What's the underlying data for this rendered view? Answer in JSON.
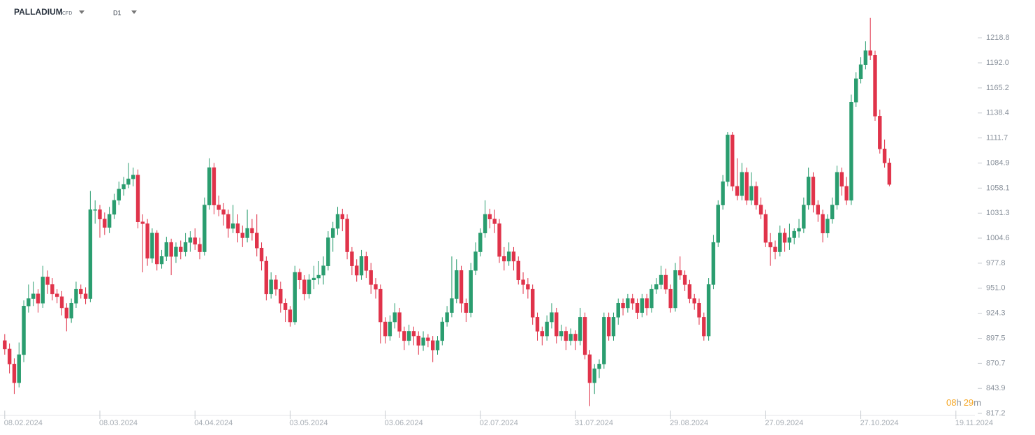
{
  "header": {
    "instrument": "PALLADIUM",
    "instrument_type": "CFD",
    "timeframe": "D1"
  },
  "countdown": [
    "08",
    "h",
    "29",
    "m"
  ],
  "chart_data": {
    "type": "candlestick",
    "up_color": "#2a9d6f",
    "down_color": "#e0334a",
    "ylim": [
      815,
      1245
    ],
    "yticks": [
      1218.8,
      {
        "value": 1192,
        "label": "1192.0"
      },
      1165.2,
      1138.4,
      1111.7,
      1084.9,
      1058.1,
      1031.3,
      1004.6,
      977.8,
      {
        "value": 951,
        "label": "951.0"
      },
      924.3,
      897.5,
      870.7,
      843.9,
      817.2
    ],
    "xlim": [
      -1,
      204
    ],
    "xticks": [
      {
        "value": 0,
        "label": "08.02.2024"
      },
      {
        "value": 20,
        "label": "08.03.2024"
      },
      {
        "value": 40,
        "label": "04.04.2024"
      },
      {
        "value": 60,
        "label": "03.05.2024"
      },
      {
        "value": 80,
        "label": "03.06.2024"
      },
      {
        "value": 100,
        "label": "02.07.2024"
      },
      {
        "value": 120,
        "label": "31.07.2024"
      },
      {
        "value": 140,
        "label": "29.08.2024"
      },
      {
        "value": 160,
        "label": "27.09.2024"
      },
      {
        "value": 180,
        "label": "27.10.2024"
      },
      {
        "value": 200,
        "label": "19.11.2024"
      }
    ],
    "candles": [
      [
        895,
        902,
        880,
        886
      ],
      [
        886,
        892,
        860,
        870
      ],
      [
        870,
        876,
        838,
        850
      ],
      [
        850,
        893,
        845,
        880
      ],
      [
        880,
        938,
        872,
        932
      ],
      [
        932,
        955,
        925,
        940
      ],
      [
        940,
        958,
        932,
        945
      ],
      [
        945,
        950,
        925,
        935
      ],
      [
        935,
        975,
        930,
        963
      ],
      [
        963,
        970,
        945,
        955
      ],
      [
        955,
        962,
        938,
        945
      ],
      [
        945,
        950,
        935,
        942
      ],
      [
        942,
        948,
        922,
        930
      ],
      [
        930,
        935,
        905,
        919
      ],
      [
        919,
        940,
        914,
        935
      ],
      [
        935,
        958,
        930,
        950
      ],
      [
        950,
        955,
        940,
        945
      ],
      [
        945,
        952,
        934,
        940
      ],
      [
        940,
        1055,
        936,
        1035
      ],
      [
        1035,
        1045,
        1020,
        1035
      ],
      [
        1035,
        1040,
        1005,
        1025
      ],
      [
        1025,
        1032,
        1008,
        1016
      ],
      [
        1016,
        1038,
        1010,
        1030
      ],
      [
        1030,
        1052,
        1025,
        1045
      ],
      [
        1045,
        1065,
        1040,
        1057
      ],
      [
        1057,
        1070,
        1050,
        1062
      ],
      [
        1062,
        1085,
        1058,
        1068
      ],
      [
        1068,
        1080,
        1060,
        1072
      ],
      [
        1072,
        1078,
        1015,
        1022
      ],
      [
        1022,
        1030,
        968,
        1020
      ],
      [
        1020,
        1025,
        975,
        983
      ],
      [
        983,
        1015,
        978,
        1010
      ],
      [
        1010,
        1013,
        970,
        977
      ],
      [
        977,
        992,
        972,
        985
      ],
      [
        985,
        1006,
        980,
        1000
      ],
      [
        1000,
        1004,
        965,
        985
      ],
      [
        985,
        1000,
        978,
        995
      ],
      [
        995,
        1002,
        982,
        990
      ],
      [
        990,
        1010,
        985,
        1000
      ],
      [
        1000,
        1012,
        990,
        1005
      ],
      [
        1005,
        1015,
        992,
        998
      ],
      [
        998,
        1005,
        982,
        990
      ],
      [
        990,
        1048,
        986,
        1040
      ],
      [
        1040,
        1090,
        1035,
        1080
      ],
      [
        1080,
        1085,
        1030,
        1040
      ],
      [
        1040,
        1050,
        1028,
        1035
      ],
      [
        1035,
        1042,
        1018,
        1030
      ],
      [
        1030,
        1035,
        1005,
        1015
      ],
      [
        1015,
        1040,
        1010,
        1020
      ],
      [
        1020,
        1030,
        1000,
        1010
      ],
      [
        1010,
        1018,
        995,
        1005
      ],
      [
        1005,
        1035,
        1000,
        1015
      ],
      [
        1015,
        1025,
        1002,
        1010
      ],
      [
        1010,
        1030,
        985,
        994
      ],
      [
        994,
        1000,
        970,
        980
      ],
      [
        980,
        985,
        938,
        945
      ],
      [
        945,
        968,
        940,
        960
      ],
      [
        960,
        965,
        943,
        950
      ],
      [
        950,
        958,
        925,
        935
      ],
      [
        935,
        940,
        915,
        928
      ],
      [
        928,
        932,
        910,
        915
      ],
      [
        915,
        975,
        912,
        968
      ],
      [
        968,
        972,
        950,
        960
      ],
      [
        960,
        965,
        938,
        945
      ],
      [
        945,
        966,
        940,
        960
      ],
      [
        960,
        975,
        950,
        962
      ],
      [
        962,
        980,
        955,
        965
      ],
      [
        965,
        985,
        955,
        975
      ],
      [
        975,
        1012,
        970,
        1005
      ],
      [
        1005,
        1022,
        990,
        1015
      ],
      [
        1015,
        1038,
        1008,
        1030
      ],
      [
        1030,
        1036,
        1012,
        1025
      ],
      [
        1025,
        1030,
        982,
        990
      ],
      [
        990,
        995,
        965,
        975
      ],
      [
        975,
        982,
        958,
        965
      ],
      [
        965,
        992,
        960,
        985
      ],
      [
        985,
        990,
        962,
        970
      ],
      [
        970,
        978,
        945,
        955
      ],
      [
        955,
        962,
        940,
        950
      ],
      [
        950,
        955,
        892,
        915
      ],
      [
        915,
        920,
        892,
        900
      ],
      [
        900,
        922,
        895,
        915
      ],
      [
        915,
        935,
        908,
        925
      ],
      [
        925,
        930,
        898,
        905
      ],
      [
        905,
        910,
        885,
        895
      ],
      [
        895,
        912,
        890,
        905
      ],
      [
        905,
        910,
        890,
        900
      ],
      [
        900,
        905,
        880,
        890
      ],
      [
        890,
        905,
        884,
        898
      ],
      [
        898,
        902,
        888,
        895
      ],
      [
        895,
        900,
        872,
        885
      ],
      [
        885,
        900,
        880,
        895
      ],
      [
        895,
        920,
        890,
        915
      ],
      [
        915,
        932,
        910,
        925
      ],
      [
        925,
        985,
        920,
        940
      ],
      [
        940,
        982,
        935,
        970
      ],
      [
        970,
        975,
        925,
        935
      ],
      [
        935,
        940,
        915,
        925
      ],
      [
        925,
        978,
        920,
        970
      ],
      [
        970,
        1000,
        965,
        990
      ],
      [
        990,
        1015,
        985,
        1010
      ],
      [
        1010,
        1045,
        1005,
        1030
      ],
      [
        1030,
        1036,
        1015,
        1025
      ],
      [
        1025,
        1035,
        1010,
        1020
      ],
      [
        1020,
        1025,
        978,
        985
      ],
      [
        985,
        995,
        970,
        980
      ],
      [
        980,
        1000,
        975,
        990
      ],
      [
        990,
        995,
        970,
        980
      ],
      [
        980,
        985,
        955,
        960
      ],
      [
        960,
        968,
        945,
        955
      ],
      [
        955,
        962,
        940,
        950
      ],
      [
        950,
        955,
        912,
        920
      ],
      [
        920,
        925,
        895,
        905
      ],
      [
        905,
        910,
        890,
        900
      ],
      [
        900,
        922,
        895,
        915
      ],
      [
        915,
        935,
        908,
        925
      ],
      [
        925,
        930,
        892,
        900
      ],
      [
        900,
        912,
        895,
        905
      ],
      [
        905,
        910,
        885,
        895
      ],
      [
        895,
        908,
        890,
        902
      ],
      [
        902,
        906,
        885,
        895
      ],
      [
        895,
        930,
        890,
        920
      ],
      [
        920,
        925,
        875,
        880
      ],
      [
        880,
        885,
        825,
        850
      ],
      [
        850,
        870,
        838,
        865
      ],
      [
        865,
        875,
        855,
        870
      ],
      [
        870,
        925,
        865,
        920
      ],
      [
        920,
        925,
        895,
        900
      ],
      [
        900,
        925,
        895,
        920
      ],
      [
        920,
        940,
        912,
        935
      ],
      [
        935,
        940,
        922,
        930
      ],
      [
        930,
        945,
        925,
        940
      ],
      [
        940,
        945,
        928,
        935
      ],
      [
        935,
        940,
        918,
        925
      ],
      [
        925,
        945,
        920,
        940
      ],
      [
        940,
        945,
        922,
        930
      ],
      [
        930,
        955,
        925,
        950
      ],
      [
        950,
        962,
        945,
        955
      ],
      [
        955,
        975,
        950,
        965
      ],
      [
        965,
        972,
        945,
        950
      ],
      [
        950,
        955,
        925,
        930
      ],
      [
        930,
        978,
        926,
        970
      ],
      [
        970,
        985,
        960,
        965
      ],
      [
        965,
        970,
        948,
        955
      ],
      [
        955,
        960,
        935,
        940
      ],
      [
        940,
        945,
        928,
        935
      ],
      [
        935,
        940,
        912,
        920
      ],
      [
        920,
        925,
        895,
        900
      ],
      [
        900,
        962,
        895,
        955
      ],
      [
        955,
        1008,
        950,
        1000
      ],
      [
        1000,
        1045,
        995,
        1040
      ],
      [
        1040,
        1072,
        1035,
        1065
      ],
      [
        1065,
        1118,
        1060,
        1115
      ],
      [
        1115,
        1118,
        1055,
        1060
      ],
      [
        1060,
        1090,
        1045,
        1050
      ],
      [
        1050,
        1085,
        1045,
        1075
      ],
      [
        1075,
        1080,
        1040,
        1045
      ],
      [
        1045,
        1075,
        1040,
        1060
      ],
      [
        1060,
        1065,
        1035,
        1040
      ],
      [
        1040,
        1048,
        1025,
        1030
      ],
      [
        1030,
        1035,
        995,
        1000
      ],
      [
        1000,
        1010,
        975,
        995
      ],
      [
        995,
        1002,
        982,
        990
      ],
      [
        990,
        1018,
        985,
        1010
      ],
      [
        1010,
        1015,
        990,
        1000
      ],
      [
        1000,
        1020,
        992,
        1005
      ],
      [
        1005,
        1015,
        998,
        1012
      ],
      [
        1012,
        1025,
        1005,
        1015
      ],
      [
        1015,
        1048,
        1010,
        1040
      ],
      [
        1040,
        1080,
        1035,
        1070
      ],
      [
        1070,
        1075,
        1032,
        1040
      ],
      [
        1040,
        1045,
        1022,
        1030
      ],
      [
        1030,
        1035,
        1000,
        1010
      ],
      [
        1010,
        1030,
        1005,
        1025
      ],
      [
        1025,
        1048,
        1020,
        1040
      ],
      [
        1040,
        1082,
        1035,
        1075
      ],
      [
        1075,
        1080,
        1050,
        1060
      ],
      [
        1060,
        1070,
        1040,
        1045
      ],
      [
        1045,
        1158,
        1040,
        1150
      ],
      [
        1150,
        1182,
        1145,
        1175
      ],
      [
        1175,
        1198,
        1170,
        1190
      ],
      [
        1190,
        1215,
        1185,
        1205
      ],
      [
        1205,
        1240,
        1195,
        1200
      ],
      [
        1200,
        1205,
        1130,
        1135
      ],
      [
        1135,
        1142,
        1095,
        1100
      ],
      [
        1100,
        1110,
        1080,
        1085
      ],
      [
        1085,
        1090,
        1060,
        1062
      ]
    ]
  }
}
